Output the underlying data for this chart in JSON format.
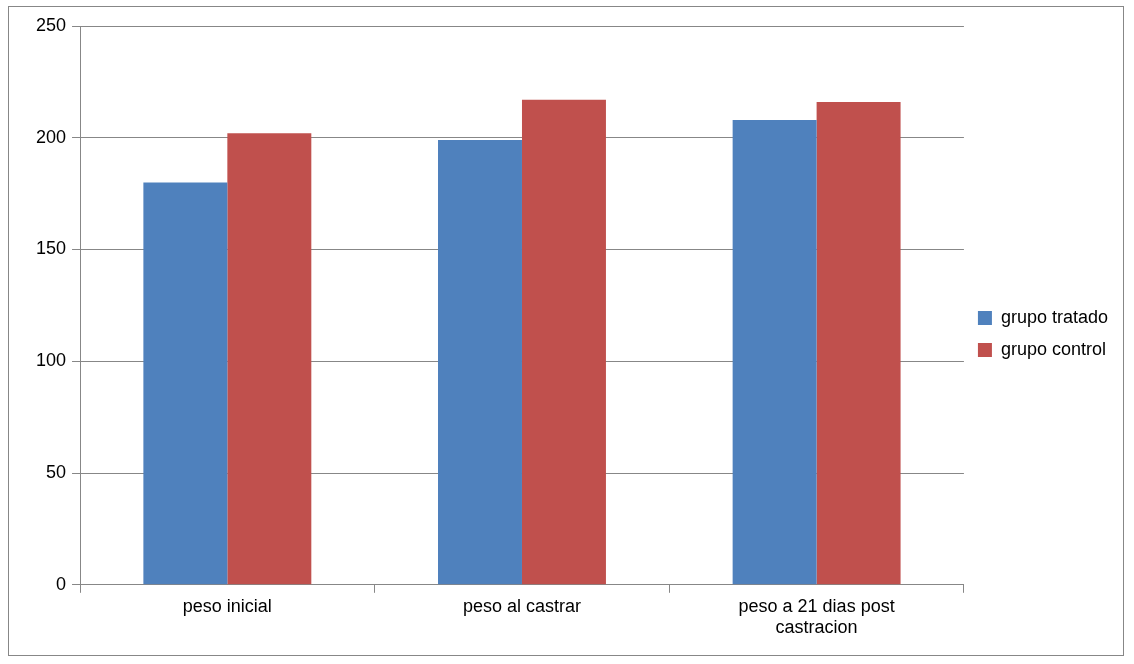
{
  "chart_data": {
    "type": "bar",
    "categories": [
      "peso inicial",
      "peso al castrar",
      "peso a 21 dias post castracion"
    ],
    "series": [
      {
        "name": "grupo tratado",
        "color": "#4f81bd",
        "values": [
          180,
          199,
          208
        ]
      },
      {
        "name": "grupo control",
        "color": "#c0504d",
        "values": [
          202,
          217,
          216
        ]
      }
    ],
    "ylim": [
      0,
      250
    ],
    "yticks": [
      0,
      50,
      100,
      150,
      200,
      250
    ],
    "grid": "y",
    "legend": "right"
  }
}
